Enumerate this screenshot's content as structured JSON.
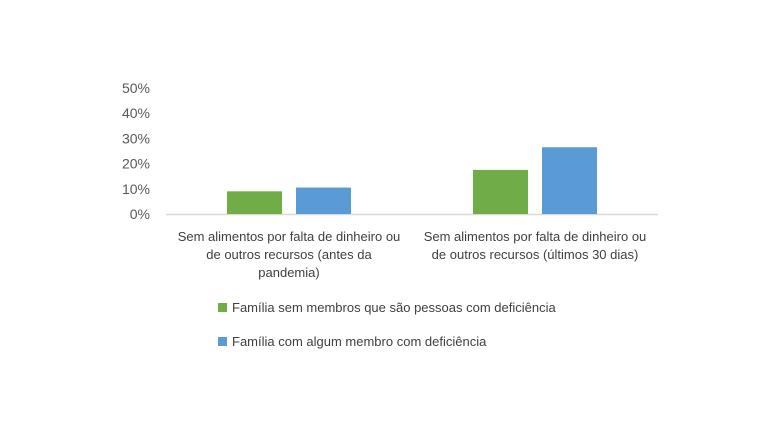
{
  "chart_data": {
    "type": "bar",
    "categories": [
      [
        "Sem alimentos por falta de dinheiro ou",
        "de outros recursos (antes da",
        "pandemia)"
      ],
      [
        "Sem alimentos por falta de dinheiro ou",
        "de outros recursos (últimos 30 dias)"
      ]
    ],
    "series": [
      {
        "name": "Família sem membros que são pessoas com deficiência",
        "color": "#70AD47",
        "values": [
          9,
          17.5
        ]
      },
      {
        "name": "Família com algum membro com deficiência",
        "color": "#5B9BD5",
        "values": [
          10.5,
          26.5
        ]
      }
    ],
    "y_ticks": [
      "0%",
      "10%",
      "20%",
      "30%",
      "40%",
      "50%"
    ],
    "ylim": [
      0,
      50
    ],
    "y_unit": "%",
    "grid": false,
    "legend_position": "bottom",
    "title": "",
    "xlabel": "",
    "ylabel": ""
  }
}
